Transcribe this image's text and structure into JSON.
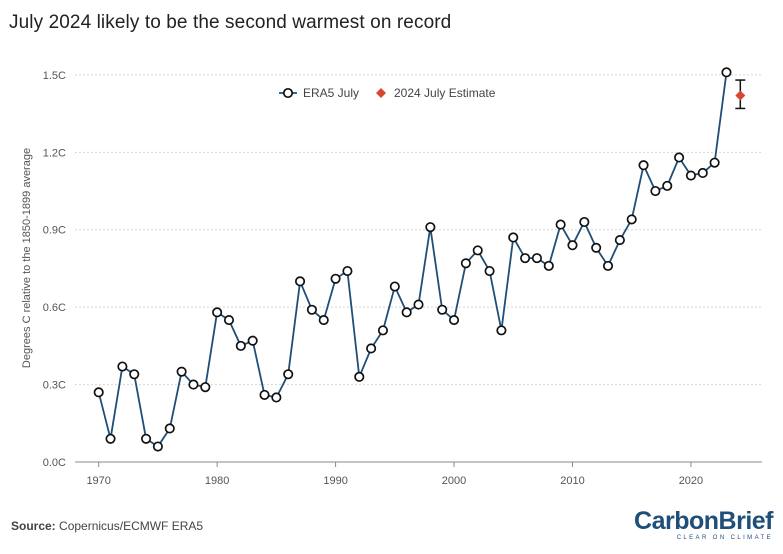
{
  "title": "July 2024 likely to be the second warmest on record",
  "source": {
    "key": "Source:",
    "text": "Copernicus/ECMWF ERA5"
  },
  "logo": {
    "brand": "CarbonBrief",
    "tagline": "CLEAR ON CLIMATE"
  },
  "colors": {
    "line": "#1f4e79",
    "marker_fill": "#ffffff",
    "marker_edge": "#111111",
    "estimate": "#d9452f",
    "grid": "#d8d8d8"
  },
  "chart_data": {
    "type": "line",
    "ylabel": "Degrees C relative to the 1850-1899 average",
    "xlabel": "",
    "xlim": [
      1968,
      2026
    ],
    "ylim": [
      0,
      1.55
    ],
    "x_ticks": [
      1970,
      1980,
      1990,
      2000,
      2010,
      2020
    ],
    "y_ticks": [
      0,
      0.3,
      0.6,
      0.9,
      1.2,
      1.5
    ],
    "y_tick_labels": [
      "0.0C",
      "0.3C",
      "0.6C",
      "0.9C",
      "1.2C",
      "1.5C"
    ],
    "legend": [
      "ERA5 July",
      "2024 July Estimate"
    ],
    "series": [
      {
        "name": "ERA5 July",
        "x": [
          1970,
          1971,
          1972,
          1973,
          1974,
          1975,
          1976,
          1977,
          1978,
          1979,
          1980,
          1981,
          1982,
          1983,
          1984,
          1985,
          1986,
          1987,
          1988,
          1989,
          1990,
          1991,
          1992,
          1993,
          1994,
          1995,
          1996,
          1997,
          1998,
          1999,
          2000,
          2001,
          2002,
          2003,
          2004,
          2005,
          2006,
          2007,
          2008,
          2009,
          2010,
          2011,
          2012,
          2013,
          2014,
          2015,
          2016,
          2017,
          2018,
          2019,
          2020,
          2021,
          2022,
          2023
        ],
        "y": [
          0.27,
          0.09,
          0.37,
          0.34,
          0.09,
          0.06,
          0.13,
          0.35,
          0.3,
          0.29,
          0.58,
          0.55,
          0.45,
          0.47,
          0.26,
          0.25,
          0.34,
          0.7,
          0.59,
          0.55,
          0.71,
          0.74,
          0.33,
          0.44,
          0.51,
          0.68,
          0.58,
          0.61,
          0.91,
          0.59,
          0.55,
          0.77,
          0.82,
          0.74,
          0.51,
          0.87,
          0.79,
          0.79,
          0.76,
          0.92,
          0.84,
          0.93,
          0.83,
          0.76,
          0.86,
          0.94,
          1.15,
          1.05,
          1.07,
          1.18,
          1.11,
          1.12,
          1.16,
          1.51
        ]
      },
      {
        "name": "2024 July Estimate",
        "x": [
          2024
        ],
        "y": [
          1.42
        ],
        "error_low": [
          1.37
        ],
        "error_high": [
          1.48
        ]
      }
    ]
  }
}
